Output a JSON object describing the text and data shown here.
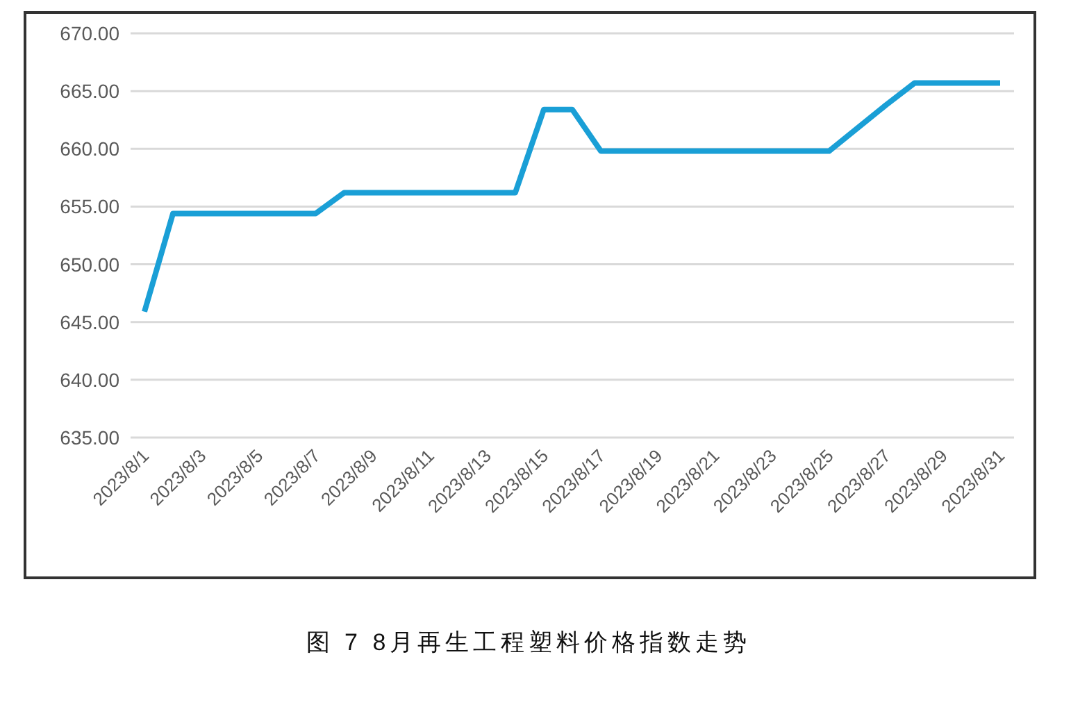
{
  "chart_data": {
    "type": "line",
    "title": "图 7  8月再生工程塑料价格指数走势",
    "categories": [
      "2023/8/1",
      null,
      "2023/8/3",
      null,
      "2023/8/5",
      null,
      "2023/8/7",
      null,
      "2023/8/9",
      null,
      "2023/8/11",
      null,
      "2023/8/13",
      null,
      "2023/8/15",
      null,
      "2023/8/17",
      null,
      "2023/8/19",
      null,
      "2023/8/21",
      null,
      "2023/8/23",
      null,
      "2023/8/25",
      null,
      "2023/8/27",
      null,
      "2023/8/29",
      null,
      "2023/8/31"
    ],
    "series": [
      {
        "color": "#1a9fd6",
        "values": [
          645.9,
          654.4,
          654.4,
          654.4,
          654.4,
          654.4,
          654.4,
          656.2,
          656.2,
          656.2,
          656.2,
          656.2,
          656.2,
          656.2,
          663.4,
          663.4,
          659.8,
          659.8,
          659.8,
          659.8,
          659.8,
          659.8,
          659.8,
          659.8,
          659.8,
          661.8,
          663.8,
          665.7,
          665.7,
          665.7,
          665.7
        ]
      }
    ],
    "ylim": [
      635,
      670
    ],
    "yticks": [
      {
        "value": 635,
        "label": "635.00"
      },
      {
        "value": 640,
        "label": "640.00"
      },
      {
        "value": 645,
        "label": "645.00"
      },
      {
        "value": 650,
        "label": "650.00"
      },
      {
        "value": 655,
        "label": "655.00"
      },
      {
        "value": 660,
        "label": "660.00"
      },
      {
        "value": 665,
        "label": "665.00"
      },
      {
        "value": 670,
        "label": "670.00"
      }
    ],
    "grid": "y",
    "legend": false,
    "marker": "none",
    "line_style": "solid"
  }
}
